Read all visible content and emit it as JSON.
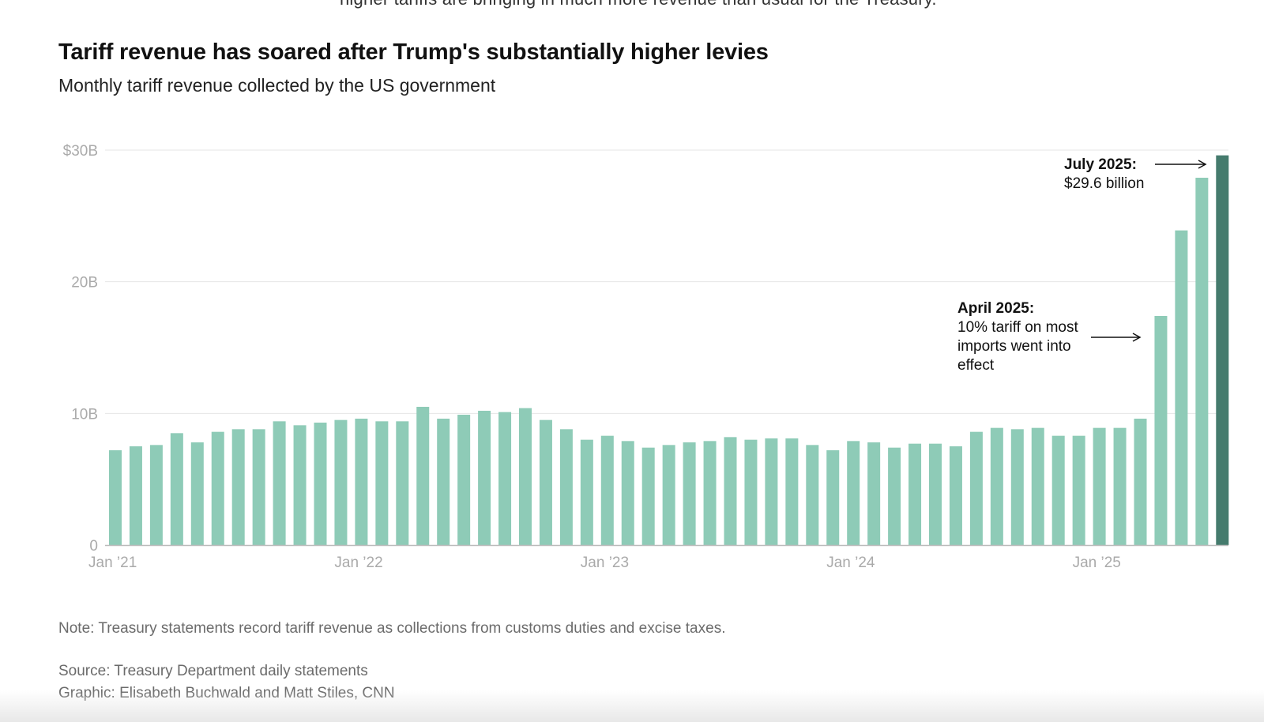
{
  "header": {
    "cut_text": "higher tariffs are bringing in much more revenue than usual for the Treasury."
  },
  "chart_data": {
    "type": "bar",
    "title": "Tariff revenue has soared after Trump's substantially higher levies",
    "subtitle": "Monthly tariff revenue collected by the US government",
    "ylabel": "",
    "xlabel": "",
    "ylim": [
      0,
      30
    ],
    "grid": true,
    "y_ticks": [
      {
        "value": 0,
        "label": "0"
      },
      {
        "value": 10,
        "label": "10B"
      },
      {
        "value": 20,
        "label": "20B"
      },
      {
        "value": 30,
        "label": "$30B"
      }
    ],
    "x_ticks": [
      {
        "index": 0,
        "label": "Jan ’21"
      },
      {
        "index": 12,
        "label": "Jan ’22"
      },
      {
        "index": 24,
        "label": "Jan ’23"
      },
      {
        "index": 36,
        "label": "Jan ’24"
      },
      {
        "index": 48,
        "label": "Jan ’25"
      }
    ],
    "categories": [
      "Jan 2021",
      "Feb 2021",
      "Mar 2021",
      "Apr 2021",
      "May 2021",
      "Jun 2021",
      "Jul 2021",
      "Aug 2021",
      "Sep 2021",
      "Oct 2021",
      "Nov 2021",
      "Dec 2021",
      "Jan 2022",
      "Feb 2022",
      "Mar 2022",
      "Apr 2022",
      "May 2022",
      "Jun 2022",
      "Jul 2022",
      "Aug 2022",
      "Sep 2022",
      "Oct 2022",
      "Nov 2022",
      "Dec 2022",
      "Jan 2023",
      "Feb 2023",
      "Mar 2023",
      "Apr 2023",
      "May 2023",
      "Jun 2023",
      "Jul 2023",
      "Aug 2023",
      "Sep 2023",
      "Oct 2023",
      "Nov 2023",
      "Dec 2023",
      "Jan 2024",
      "Feb 2024",
      "Mar 2024",
      "Apr 2024",
      "May 2024",
      "Jun 2024",
      "Jul 2024",
      "Aug 2024",
      "Sep 2024",
      "Oct 2024",
      "Nov 2024",
      "Dec 2024",
      "Jan 2025",
      "Feb 2025",
      "Mar 2025",
      "Apr 2025",
      "May 2025",
      "Jun 2025",
      "Jul 2025"
    ],
    "values": [
      7.2,
      7.5,
      7.6,
      8.5,
      7.8,
      8.6,
      8.8,
      8.8,
      9.4,
      9.1,
      9.3,
      9.5,
      9.6,
      9.4,
      9.4,
      10.5,
      9.6,
      9.9,
      10.2,
      10.1,
      10.4,
      9.5,
      8.8,
      8.0,
      8.3,
      7.9,
      7.4,
      7.6,
      7.8,
      7.9,
      8.2,
      8.0,
      8.1,
      8.1,
      7.6,
      7.2,
      7.9,
      7.8,
      7.4,
      7.7,
      7.7,
      7.5,
      8.6,
      8.9,
      8.8,
      8.9,
      8.3,
      8.3,
      8.9,
      8.9,
      9.6,
      17.4,
      23.9,
      27.9,
      29.6
    ],
    "colors": {
      "bar": "#8ecbb7",
      "highlight": "#457b6d",
      "grid": "#e6e6e6",
      "axis": "#bbbbbb",
      "tick_text": "#aaaaaa",
      "annotation": "#111111"
    },
    "annotations": [
      {
        "target_index": 54,
        "heading": "July 2025:",
        "lines": [
          "$29.6 billion"
        ]
      },
      {
        "target_index": 51,
        "heading": "April 2025:",
        "lines": [
          "10% tariff on most",
          "imports went into",
          "effect"
        ]
      }
    ]
  },
  "notes": {
    "note": "Note: Treasury statements record tariff revenue as collections from customs duties and excise taxes.",
    "source": "Source: Treasury Department daily statements",
    "credit": "Graphic: Elisabeth Buchwald and Matt Stiles, CNN"
  }
}
